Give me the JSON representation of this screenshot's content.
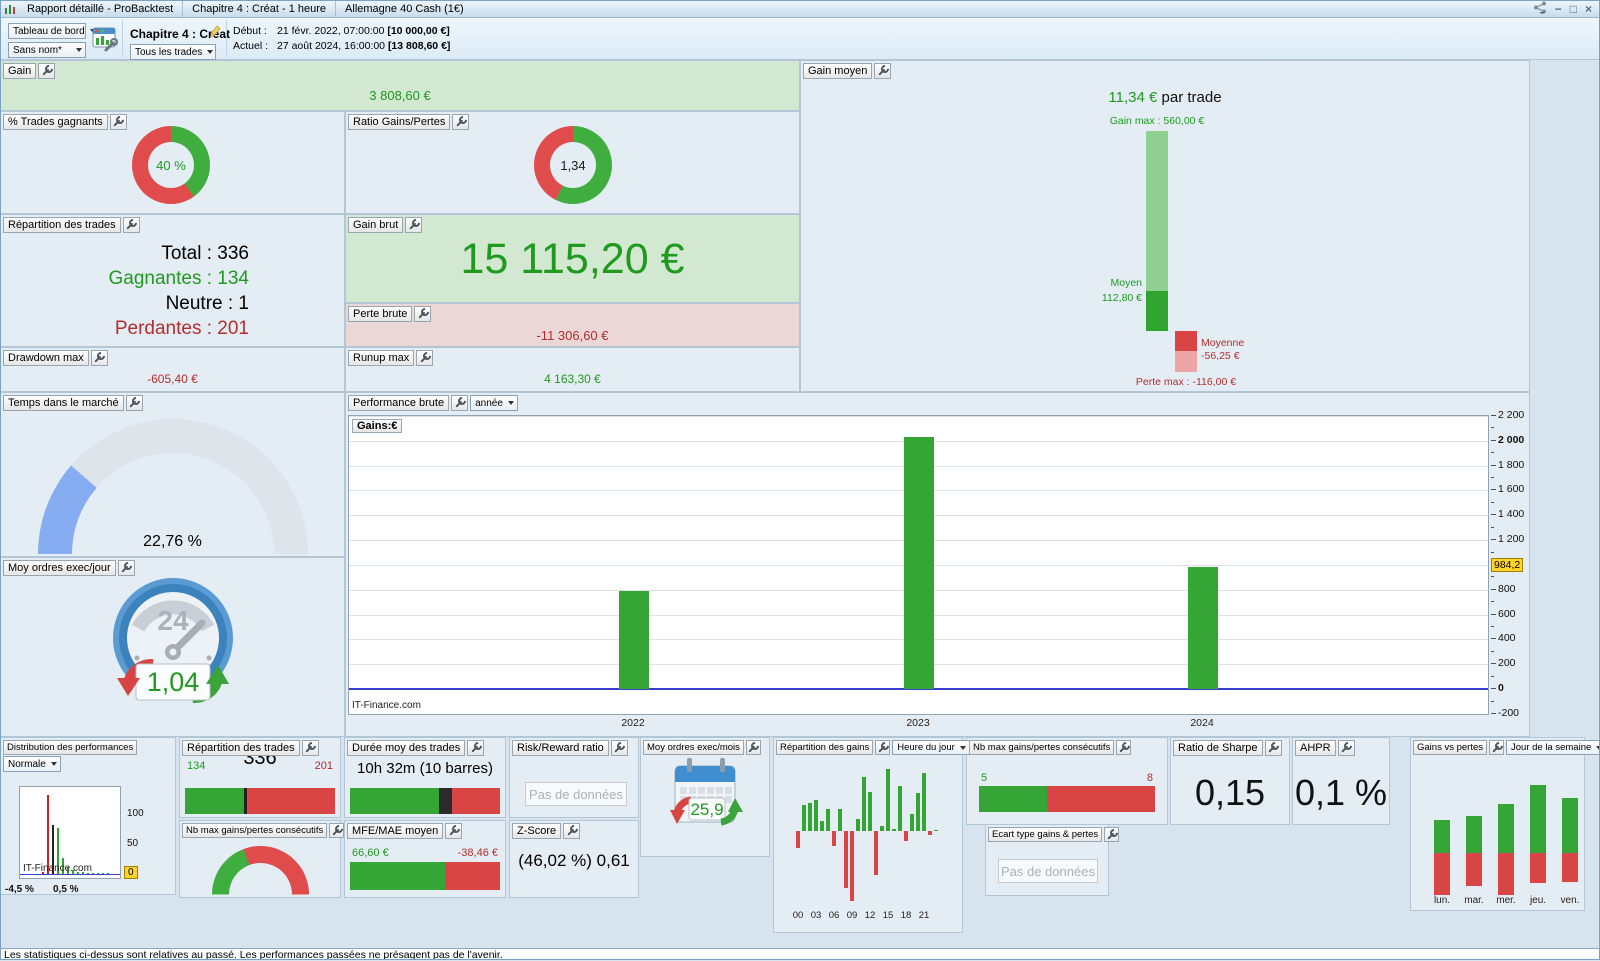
{
  "colors": {
    "green_text": "#1f9a1f",
    "red_text": "#b32d2d",
    "donut_green": "#3fae3f",
    "donut_red": "#e04b4b",
    "bar_green": "#35a535",
    "bar_red": "#d94545",
    "bar_black": "#2b2b2b",
    "light_green_bg": "#d3e8d1",
    "light_red_bg": "#ecd7d7",
    "gauge_blue": "#86adf1",
    "gauge_track": "#dde4ea",
    "highlight_yellow": "#ffd42a",
    "zero_line_blue": "#3c3ccc",
    "gain_bar_light_green": "#8fcf8f",
    "gain_bar_dark_green": "#2fa52f",
    "gain_bar_dark_red": "#d94545",
    "gain_bar_light_red": "#eda5a5"
  },
  "titlebar": {
    "tabs": [
      "Rapport détaillé - ProBacktest",
      "Chapitre 4 : Créat - 1 heure",
      "Allemagne 40 Cash (1€)"
    ],
    "controls": {
      "minimize": "−",
      "maximize": "□",
      "close": "×"
    }
  },
  "toolbar": {
    "view_select": "Tableau de bord",
    "layout_select": "Sans nom*",
    "chapter_title": "Chapitre 4 : Créat",
    "trades_select": "Tous les trades",
    "start": {
      "label": "Début :",
      "datetime": "21 févr. 2022, 07:00:00",
      "amount": "[10 000,00 €]"
    },
    "current": {
      "label": "Actuel :",
      "datetime": "27 août 2024, 16:00:00",
      "amount": "[13 808,60 €]"
    }
  },
  "panels": {
    "gain": {
      "title": "Gain",
      "value": "3 808,60 €"
    },
    "pct_trades": {
      "title": "% Trades gagnants",
      "value": "40 %",
      "green_pct": 40
    },
    "ratio_gp": {
      "title": "Ratio Gains/Pertes",
      "value": "1,34",
      "green_pct": 57.3
    },
    "repartition": {
      "title": "Répartition des trades",
      "rows": [
        {
          "text": "Total : 336",
          "color": "#000000"
        },
        {
          "text": "Gagnantes : 134",
          "color": "#1f9a1f"
        },
        {
          "text": "Neutre : 1",
          "color": "#000000"
        },
        {
          "text": "Perdantes : 201",
          "color": "#b32d2d"
        }
      ]
    },
    "gain_brut": {
      "title": "Gain brut",
      "value": "15 115,20 €"
    },
    "perte_brute": {
      "title": "Perte brute",
      "value": "-11 306,60 €"
    },
    "drawdown_max": {
      "title": "Drawdown max",
      "value": "-605,40 €"
    },
    "runup_max": {
      "title": "Runup max",
      "value": "4 163,30 €"
    },
    "gain_moyen": {
      "title": "Gain moyen",
      "value": "11,34 €",
      "suffix": " par trade",
      "gain_max_label": "Gain max : 560,00 €",
      "moyen_label": "Moyen",
      "moyen_value": "112,80 €",
      "moyenne_label": "Moyenne",
      "moyenne_value": "-56,25 €",
      "perte_max_label": "Perte max : -116,00 €",
      "gain_max": 560,
      "moyen": 112.8,
      "moyenne": -56.25,
      "perte_max": -116
    },
    "temps_marche": {
      "title": "Temps dans le marché",
      "value": "22,76 %",
      "pct": 22.76
    },
    "ordres_jour": {
      "title": "Moy ordres exec/jour",
      "value": "1,04",
      "clock_label": "24"
    },
    "performance": {
      "title": "Performance brute",
      "period": "année",
      "unit": "Gains:€",
      "watermark": "IT-Finance.com",
      "current_label": "984,2"
    },
    "distribution": {
      "title": "Distribution des performances",
      "mode": "Normale",
      "watermark": "IT-Finance.com",
      "x_labels": [
        "-4,5 %",
        "0,5 %"
      ],
      "y_labels": [
        "100",
        "50"
      ],
      "zero_label": "0"
    },
    "repartition_bar": {
      "title": "Répartition des trades",
      "wins": "134",
      "total": "336",
      "losses": "201",
      "wins_n": 134,
      "neutral_n": 1,
      "losses_n": 201
    },
    "nbmax_gauge": {
      "title": "Nb max gains/pertes consécutifs",
      "gains_n": 5,
      "pertes_n": 8
    },
    "duree": {
      "title": "Durée moy des trades",
      "value": "10h 32m (10 barres)",
      "segments": [
        59,
        9,
        32
      ]
    },
    "mfe_mae": {
      "title": "MFE/MAE moyen",
      "mfe": "66,60 €",
      "mae": "-38,46 €",
      "mfe_n": 66.6,
      "mae_n": 38.46
    },
    "risk_reward": {
      "title": "Risk/Reward ratio",
      "placeholder": "Pas de données"
    },
    "z_score": {
      "title": "Z-Score",
      "value": "(46,02 %) 0,61"
    },
    "ordres_mois": {
      "title": "Moy ordres exec/mois",
      "value": "25,9"
    },
    "gains_heure": {
      "title": "Répartition des gains",
      "period": "Heure du jour"
    },
    "nbmax_bar": {
      "title": "Nb max gains/pertes consécutifs",
      "gains": "5",
      "pertes": "8",
      "gains_n": 5,
      "pertes_n": 8
    },
    "sharpe": {
      "title": "Ratio de Sharpe",
      "value": "0,15"
    },
    "ahpr": {
      "title": "AHPR",
      "value": "0,1 %"
    },
    "ecart_type": {
      "title": "Ecart type gains & pertes",
      "placeholder": "Pas de données"
    },
    "gains_semaine": {
      "title": "Gains vs pertes",
      "period": "Jour de la semaine"
    }
  },
  "statusbar": {
    "text": "Les statistiques ci-dessus sont relatives au passé. Les performances passées ne présagent pas de l'avenir."
  },
  "chart_data": [
    {
      "id": "performance_brute_annee",
      "type": "bar",
      "title": "Performance brute (année)",
      "ylabel": "Gains:€",
      "categories": [
        "2022",
        "2023",
        "2024"
      ],
      "values": [
        790,
        2030,
        984.2
      ],
      "ylim": [
        -200,
        2200
      ],
      "tick_step": 200,
      "minor_tick_step": 100,
      "y_tick_labels": {
        "-200": "-200",
        "0": "0",
        "200": "200",
        "400": "400",
        "600": "600",
        "800": "800",
        "1200": "1 200",
        "1400": "1 400",
        "1600": "1 600",
        "1800": "1 800",
        "2000": "2 000",
        "2200": "2 200"
      },
      "bold_ticks": [
        2000,
        0
      ],
      "current_value": 984.2,
      "current_value_label": "984,2",
      "axis_side": "right",
      "grid": true,
      "watermark": "IT-Finance.com"
    },
    {
      "id": "distribution_des_performances",
      "type": "bar",
      "x_range_labels": [
        "-4,5 %",
        "0,5 %"
      ],
      "y_ticks": [
        100,
        50,
        0
      ],
      "bars": [
        {
          "value": 3,
          "color": "red"
        },
        {
          "value": 132,
          "color": "red"
        },
        {
          "value": 82,
          "color": "black"
        },
        {
          "value": 76,
          "color": "green"
        },
        {
          "value": 26,
          "color": "green"
        },
        {
          "value": 12,
          "color": "green"
        },
        {
          "value": 7,
          "color": "green"
        },
        {
          "value": 4,
          "color": "green"
        },
        {
          "value": 3,
          "color": "green"
        },
        {
          "value": 2,
          "color": "green"
        },
        {
          "value": 1,
          "color": "green"
        },
        {
          "value": 1,
          "color": "green"
        },
        {
          "value": 1,
          "color": "green"
        },
        {
          "value": 1,
          "color": "green"
        }
      ]
    },
    {
      "id": "repartition_des_gains_heure",
      "type": "bar",
      "x_tick_labels": [
        "00",
        "03",
        "06",
        "09",
        "12",
        "15",
        "18",
        "21"
      ],
      "values": [
        -17,
        26,
        28,
        31,
        10,
        22,
        -15,
        22,
        -57,
        -70,
        12,
        54,
        39,
        -44,
        5,
        62,
        2,
        45,
        -10,
        17,
        38,
        58,
        -4,
        1
      ]
    },
    {
      "id": "gains_vs_pertes_semaine",
      "type": "stacked-bar",
      "categories": [
        "lun.",
        "mar.",
        "mer.",
        "jeu.",
        "ven."
      ],
      "series": [
        {
          "name": "gains",
          "color": "green",
          "values": [
            33,
            37,
            49,
            68,
            55
          ]
        },
        {
          "name": "pertes",
          "color": "red",
          "values": [
            -42,
            -33,
            -42,
            -30,
            -29
          ]
        }
      ]
    },
    {
      "id": "gain_moyen_range",
      "type": "bar",
      "segments": [
        {
          "label": "Gain max",
          "value": 560
        },
        {
          "label": "Moyen",
          "value": 112.8
        },
        {
          "label": "Moyenne",
          "value": -56.25
        },
        {
          "label": "Perte max",
          "value": -116
        }
      ]
    }
  ]
}
